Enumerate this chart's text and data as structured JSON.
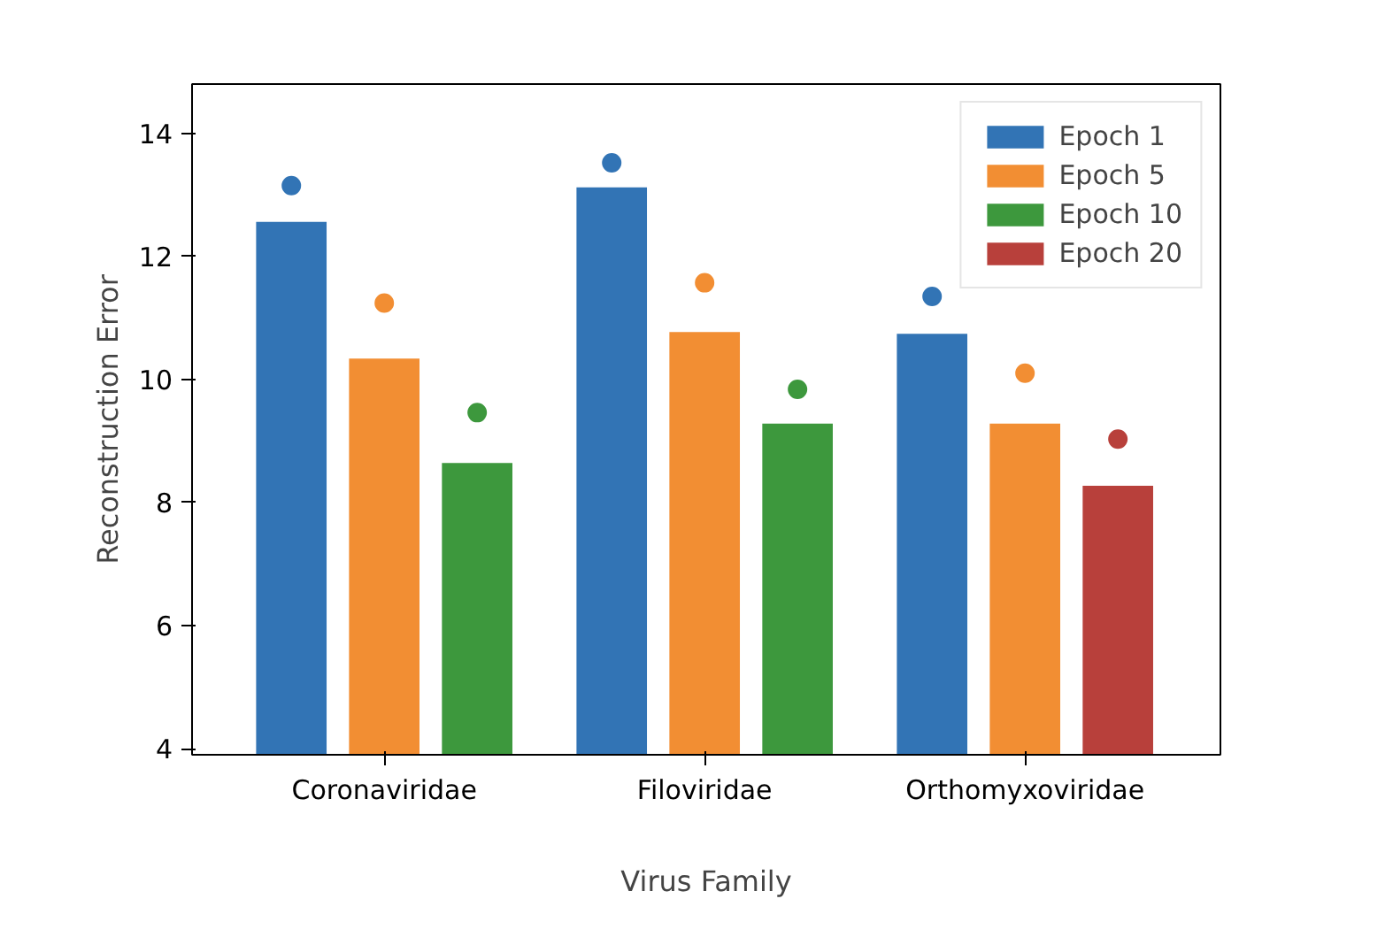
{
  "chart_data": {
    "type": "bar",
    "xlabel": "Virus Family",
    "ylabel": "Reconstruction Error",
    "categories": [
      "Coronaviridae",
      "Filoviridae",
      "Orthomyxoviridae"
    ],
    "ylim": [
      3.9,
      14.8
    ],
    "yticks": [
      4,
      6,
      8,
      10,
      12,
      14
    ],
    "grid": false,
    "legend": "top right",
    "series": [
      {
        "name": "Epoch 1",
        "color": "#3274b5",
        "values": [
          12.56,
          13.12,
          10.74
        ]
      },
      {
        "name": "Epoch 5",
        "color": "#f28e33",
        "values": [
          10.34,
          10.77,
          9.28
        ]
      },
      {
        "name": "Epoch 10",
        "color": "#3d983d",
        "values": [
          8.64,
          9.28,
          null
        ]
      },
      {
        "name": "Epoch 20",
        "color": "#b8403b",
        "values": [
          null,
          null,
          8.27
        ]
      },
      {
        "type": "scatter",
        "color": "#3274b5",
        "marker": "circle",
        "values": [
          13.15,
          13.52,
          11.35
        ]
      },
      {
        "type": "scatter",
        "color": "#f28e33",
        "marker": "circle",
        "values": [
          11.24,
          11.57,
          10.1
        ]
      },
      {
        "type": "scatter",
        "color": "#3d983d",
        "marker": "circle",
        "values": [
          9.46,
          9.84,
          null
        ]
      },
      {
        "type": "scatter",
        "color": "#b8403b",
        "marker": "circle",
        "values": [
          null,
          null,
          9.03
        ]
      }
    ]
  }
}
